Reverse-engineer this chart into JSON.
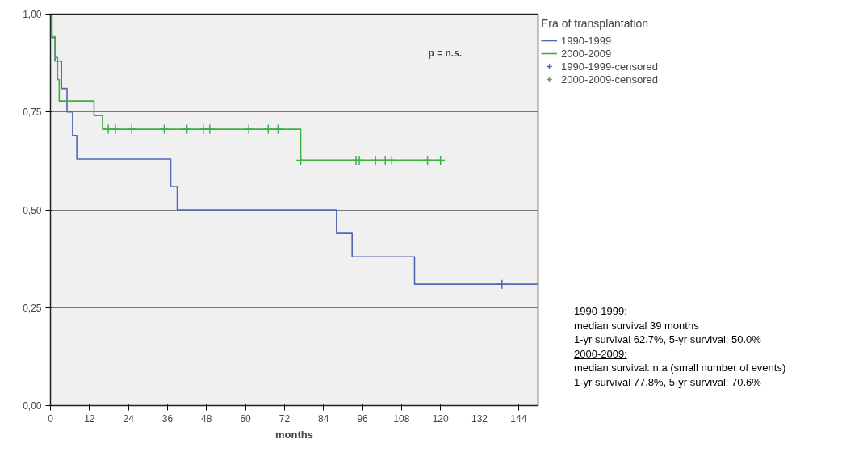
{
  "chart_data": {
    "type": "step",
    "xlabel": "months",
    "legend_title": "Era of transplantation",
    "xlim": [
      0,
      150
    ],
    "xticks": [
      0,
      12,
      24,
      36,
      48,
      60,
      72,
      84,
      96,
      108,
      120,
      132,
      144
    ],
    "ylim": [
      0,
      1
    ],
    "yticks": [
      {
        "value": 0,
        "label": "0,00"
      },
      {
        "value": 0.25,
        "label": "0,25"
      },
      {
        "value": 0.5,
        "label": "0,50"
      },
      {
        "value": 0.75,
        "label": "0,75"
      },
      {
        "value": 1,
        "label": "1,00"
      }
    ],
    "grid": "y",
    "legend": "top right",
    "series": [
      {
        "name": "1990-1999",
        "color": "#5565b5",
        "x": [
          0,
          0.4,
          1.4,
          3.4,
          5.1,
          6.8,
          8.1,
          37,
          39,
          88,
          92.8,
          112,
          150
        ],
        "values": [
          1,
          0.94,
          0.88,
          0.81,
          0.75,
          0.69,
          0.63,
          0.56,
          0.5,
          0.44,
          0.38,
          0.31,
          0.31
        ]
      },
      {
        "name": "2000-2009",
        "color": "#3cb043",
        "x": [
          0,
          0.5,
          1.4,
          2.2,
          2.7,
          13.4,
          16,
          77,
          120
        ],
        "values": [
          1,
          0.944,
          0.889,
          0.833,
          0.778,
          0.741,
          0.706,
          0.627,
          0.627
        ]
      },
      {
        "name": "1990-1999-censored",
        "color": "#5565b5",
        "type": "scatter",
        "marker": "cross",
        "x": [
          138.9
        ],
        "values": [
          0.31
        ]
      },
      {
        "name": "2000-2009-censored",
        "color": "#3cb043",
        "type": "scatter",
        "marker": "cross",
        "x": [
          17.8,
          20,
          25,
          35,
          42,
          47,
          49,
          61,
          67,
          70,
          77,
          94,
          95,
          100,
          103,
          105,
          116,
          120
        ],
        "values": [
          0.706,
          0.706,
          0.706,
          0.706,
          0.706,
          0.706,
          0.706,
          0.706,
          0.706,
          0.706,
          0.627,
          0.627,
          0.627,
          0.627,
          0.627,
          0.627,
          0.627,
          0.627
        ]
      }
    ],
    "annotations": [
      "p = n.s.",
      "1990-1999:",
      "median survival 39 months",
      "1-yr survival 62.7%, 5-yr survival: 50.0%",
      "2000-2009:",
      "median survival: n.a (small number of events)",
      "1-yr survival 77.8%, 5-yr survival: 70.6%"
    ]
  }
}
